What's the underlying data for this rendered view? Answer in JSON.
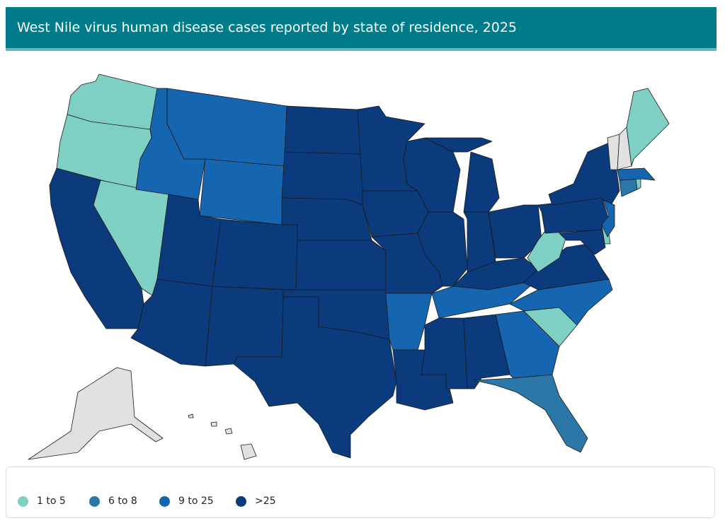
{
  "header": {
    "title": "West Nile virus human disease cases reported by state of residence, 2025"
  },
  "legend": {
    "items": [
      {
        "label": "1 to 5",
        "color": "#7ecfc4"
      },
      {
        "label": "6 to 8",
        "color": "#2b78a8"
      },
      {
        "label": "9 to 25",
        "color": "#1565b0"
      },
      {
        "label": ">25",
        "color": "#0b3b7c"
      }
    ]
  }
}
